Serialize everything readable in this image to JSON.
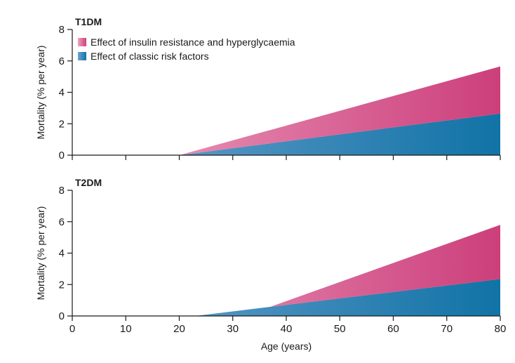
{
  "chart_data": [
    {
      "type": "area",
      "title": "T1DM",
      "xlabel": "",
      "ylabel": "Mortality (% per year)",
      "xlim": [
        0,
        80
      ],
      "ylim": [
        0,
        8
      ],
      "x_ticks": [
        "0",
        "10",
        "20",
        "30",
        "40",
        "50",
        "60",
        "70",
        "80"
      ],
      "y_ticks": [
        "0",
        "2",
        "4",
        "6",
        "8"
      ],
      "x_tick_labels_shown": false,
      "grid": false,
      "legend_position": "top-left",
      "stacked": true,
      "series": [
        {
          "name": "Effect of classic risk factors",
          "color_light": "#6fa3cf",
          "color_dark": "#1173a6",
          "x": [
            0,
            20,
            80
          ],
          "values": [
            0,
            0,
            2.65
          ]
        },
        {
          "name": "Effect of insulin resistance and hyperglycaemia",
          "color_light": "#eda3c3",
          "color_dark": "#cc3f7b",
          "x": [
            0,
            20,
            80
          ],
          "values": [
            0,
            0,
            3.0
          ]
        }
      ]
    },
    {
      "type": "area",
      "title": "T2DM",
      "xlabel": "Age (years)",
      "ylabel": "Mortality (% per year)",
      "xlim": [
        0,
        80
      ],
      "ylim": [
        0,
        8
      ],
      "x_ticks": [
        "0",
        "10",
        "20",
        "30",
        "40",
        "50",
        "60",
        "70",
        "80"
      ],
      "y_ticks": [
        "0",
        "2",
        "4",
        "6",
        "8"
      ],
      "x_tick_labels_shown": true,
      "grid": false,
      "stacked": true,
      "series": [
        {
          "name": "Effect of classic risk factors",
          "color_light": "#6fa3cf",
          "color_dark": "#1173a6",
          "x": [
            0,
            23,
            37,
            80
          ],
          "values": [
            0,
            0,
            0.58,
            2.35
          ]
        },
        {
          "name": "Effect of insulin resistance and hyperglycaemia",
          "color_light": "#eda3c3",
          "color_dark": "#cc3f7b",
          "x": [
            0,
            37,
            80
          ],
          "values": [
            0,
            0,
            3.45
          ]
        }
      ]
    }
  ]
}
